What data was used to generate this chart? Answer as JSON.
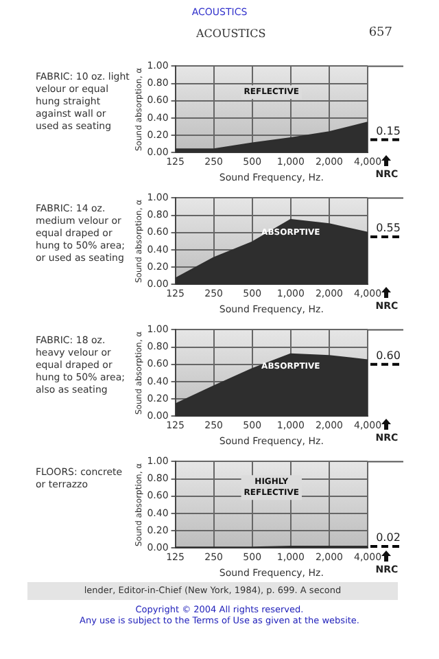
{
  "chart_data": [
    {
      "type": "other",
      "title": "ACOUSTICS",
      "subtitle": "ACOUSTICS",
      "annotations": [
        "657"
      ]
    },
    {
      "type": "area",
      "title": "FABRIC: 10 oz. light velour or equal hung straight against wall or used as seating",
      "xlabel": "Sound Frequency, Hz.",
      "ylabel": "Sound absorption, α",
      "categories": [
        "125",
        "250",
        "500",
        "1,000",
        "2,000",
        "4,000"
      ],
      "series": [
        {
          "color": "#2e2e2e",
          "values": [
            0.04,
            0.04,
            0.11,
            0.17,
            0.24,
            0.35
          ]
        }
      ],
      "ylim": [
        0,
        1
      ],
      "yticks": [
        {
          "value": 0,
          "label": "0.00"
        },
        {
          "value": 0.2,
          "label": "0.20"
        },
        {
          "value": 0.4,
          "label": "0.40"
        },
        {
          "value": 0.6,
          "label": "0.60"
        },
        {
          "value": 0.8,
          "label": "0.80"
        },
        {
          "value": 1,
          "label": "1.00"
        }
      ],
      "grid": true,
      "ref_lines": [
        {
          "axis": "y",
          "value": 0.15,
          "label": "0.15",
          "color": "#000000",
          "line_style": "dashed"
        }
      ],
      "annotations": [
        "REFLECTIVE",
        "NRC"
      ]
    },
    {
      "type": "area",
      "title": "FABRIC: 14 oz. medium velour or equal draped or hung to 50% area; or used as seating",
      "xlabel": "Sound Frequency, Hz.",
      "ylabel": "Sound absorption, α",
      "categories": [
        "125",
        "250",
        "500",
        "1,000",
        "2,000",
        "4,000"
      ],
      "series": [
        {
          "color": "#2e2e2e",
          "values": [
            0.07,
            0.31,
            0.49,
            0.75,
            0.7,
            0.6
          ]
        }
      ],
      "ylim": [
        0,
        1
      ],
      "yticks": [
        {
          "value": 0,
          "label": "0.00"
        },
        {
          "value": 0.2,
          "label": "0.20"
        },
        {
          "value": 0.4,
          "label": "0.40"
        },
        {
          "value": 0.6,
          "label": "0.60"
        },
        {
          "value": 0.8,
          "label": "0.80"
        },
        {
          "value": 1,
          "label": "1.00"
        }
      ],
      "grid": true,
      "ref_lines": [
        {
          "axis": "y",
          "value": 0.55,
          "label": "0.55",
          "color": "#000000",
          "line_style": "dashed"
        }
      ],
      "annotations": [
        "ABSORPTIVE",
        "NRC"
      ]
    },
    {
      "type": "area",
      "title": "FABRIC: 18 oz. heavy velour or equal draped or hung to 50% area; also as seating",
      "xlabel": "Sound Frequency, Hz.",
      "ylabel": "Sound absorption, α",
      "categories": [
        "125",
        "250",
        "500",
        "1,000",
        "2,000",
        "4,000"
      ],
      "series": [
        {
          "color": "#2e2e2e",
          "values": [
            0.14,
            0.35,
            0.55,
            0.72,
            0.7,
            0.65
          ]
        }
      ],
      "ylim": [
        0,
        1
      ],
      "yticks": [
        {
          "value": 0,
          "label": "0.00"
        },
        {
          "value": 0.2,
          "label": "0.20"
        },
        {
          "value": 0.4,
          "label": "0.40"
        },
        {
          "value": 0.6,
          "label": "0.60"
        },
        {
          "value": 0.8,
          "label": "0.80"
        },
        {
          "value": 1,
          "label": "1.00"
        }
      ],
      "grid": true,
      "ref_lines": [
        {
          "axis": "y",
          "value": 0.6,
          "label": "0.60",
          "color": "#000000",
          "line_style": "dashed"
        }
      ],
      "annotations": [
        "ABSORPTIVE",
        "NRC"
      ]
    },
    {
      "type": "area",
      "title": "FLOORS: concrete or terrazzo",
      "xlabel": "Sound Frequency, Hz.",
      "ylabel": "Sound absorption, α",
      "categories": [
        "125",
        "250",
        "500",
        "1,000",
        "2,000",
        "4,000"
      ],
      "series": [
        {
          "color": "#2e2e2e",
          "values": [
            0.01,
            0.01,
            0.01,
            0.02,
            0.02,
            0.02
          ]
        }
      ],
      "ylim": [
        0,
        1
      ],
      "yticks": [
        {
          "value": 0,
          "label": "0.00"
        },
        {
          "value": 0.2,
          "label": "0.20"
        },
        {
          "value": 0.4,
          "label": "0.40"
        },
        {
          "value": 0.6,
          "label": "0.60"
        },
        {
          "value": 0.8,
          "label": "0.80"
        },
        {
          "value": 1,
          "label": "1.00"
        }
      ],
      "grid": true,
      "ref_lines": [
        {
          "axis": "y",
          "value": 0.02,
          "label": "0.02",
          "color": "#000000",
          "line_style": "dashed"
        }
      ],
      "annotations": [
        "HIGHLY\nREFLECTIVE",
        "NRC"
      ]
    },
    {
      "type": "other",
      "annotations": [
        "lender, Editor-in-Chief (New York, 1984), p. 699. A second",
        "Copyright © 2004 All rights reserved.",
        "Any use is subject to the Terms of Use as given at the website."
      ]
    }
  ]
}
